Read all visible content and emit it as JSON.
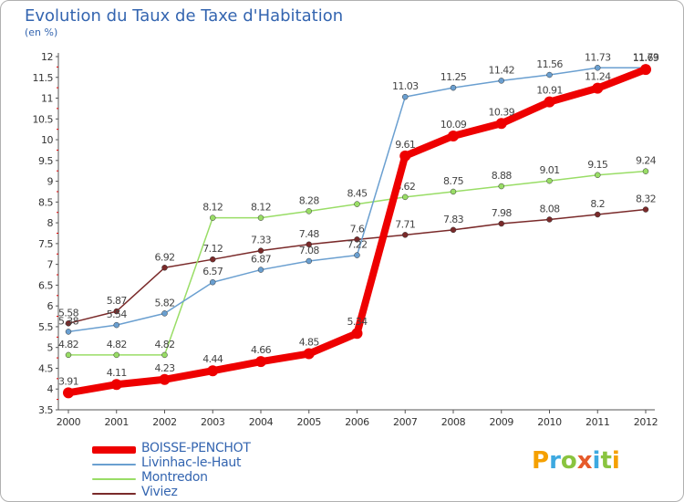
{
  "title": "Evolution du Taux de Taxe d'Habitation",
  "unit": "(en %)",
  "logo": {
    "letters": [
      "P",
      "r",
      "o",
      "x",
      "i",
      "t",
      "i"
    ],
    "colors": [
      "#f5a000",
      "#3da9e0",
      "#8ac43f",
      "#e65a2a",
      "#3da9e0",
      "#8ac43f",
      "#f5a000"
    ]
  },
  "chart_data": {
    "type": "line",
    "title": "Evolution du Taux de Taxe d'Habitation",
    "ylabel": "(en %)",
    "xlabel": "",
    "x": [
      "2000",
      "2001",
      "2002",
      "2003",
      "2004",
      "2005",
      "2006",
      "2007",
      "2008",
      "2009",
      "2010",
      "2011",
      "2012"
    ],
    "ylim": [
      3.5,
      12
    ],
    "yticks": [
      "3.5",
      "4",
      "4.5",
      "5",
      "5.5",
      "6",
      "6.5",
      "7",
      "7.5",
      "8",
      "8.5",
      "9",
      "9.5",
      "10",
      "10.5",
      "11",
      "11.5",
      "12"
    ],
    "grid": false,
    "legend_position": "bottom-left",
    "series": [
      {
        "name": "BOISSE-PENCHOT",
        "color": "#ee0000",
        "width": 8,
        "values": [
          3.91,
          4.11,
          4.23,
          4.44,
          4.66,
          4.85,
          5.34,
          9.61,
          10.09,
          10.39,
          10.91,
          11.24,
          11.69
        ],
        "labels": [
          "3.91",
          "4.11",
          "4.23",
          "4.44",
          "4.66",
          "4.85",
          "5.34",
          "9.61",
          "10.09",
          "10.39",
          "10.91",
          "11.24",
          "11.69"
        ]
      },
      {
        "name": "Livinhac-le-Haut",
        "color": "#6a9fd0",
        "width": 1.5,
        "values": [
          5.38,
          5.54,
          5.82,
          6.57,
          6.87,
          7.08,
          7.22,
          11.03,
          11.25,
          11.42,
          11.56,
          11.73,
          11.73
        ],
        "labels": [
          "5.38",
          "5.54",
          "5.82",
          "6.57",
          "6.87",
          "7.08",
          "7.22",
          "11.03",
          "11.25",
          "11.42",
          "11.56",
          "11.73",
          "11.73"
        ]
      },
      {
        "name": "Montredon",
        "color": "#99dd66",
        "width": 1.5,
        "values": [
          4.82,
          4.82,
          4.82,
          8.12,
          8.12,
          8.28,
          8.45,
          8.62,
          8.75,
          8.88,
          9.01,
          9.15,
          9.24
        ],
        "labels": [
          "4.82",
          "4.82",
          "4.82",
          "8.12",
          "8.12",
          "8.28",
          "8.45",
          "8.62",
          "8.75",
          "8.88",
          "9.01",
          "9.15",
          "9.24"
        ]
      },
      {
        "name": "Viviez",
        "color": "#7a2a2a",
        "width": 1.5,
        "values": [
          5.58,
          5.87,
          6.92,
          7.12,
          7.33,
          7.48,
          7.6,
          7.71,
          7.83,
          7.98,
          8.08,
          8.2,
          8.32
        ],
        "labels": [
          "5.58",
          "5.87",
          "6.92",
          "7.12",
          "7.33",
          "7.48",
          "7.6",
          "7.71",
          "7.83",
          "7.98",
          "8.08",
          "8.2",
          "8.32"
        ]
      }
    ]
  }
}
